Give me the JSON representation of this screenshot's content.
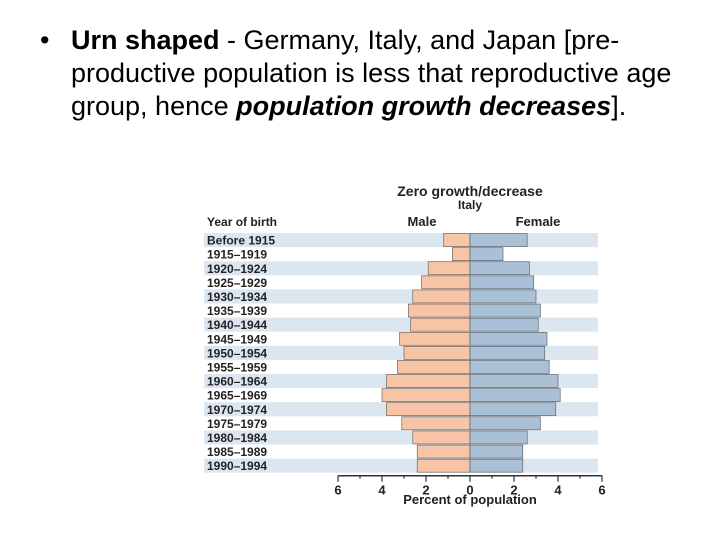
{
  "slide": {
    "bullet": "•",
    "lead_bold": "Urn shaped",
    "text_1": " - Germany, Italy, and Japan [pre-productive population is less that reproductive age group, hence ",
    "text_emph": "population growth decreases",
    "text_2": "]."
  },
  "chart_data": {
    "type": "bar",
    "orientation": "horizontal-pyramid",
    "title": "Zero growth/decrease",
    "subtitle": "Italy",
    "category_header": "Year of birth",
    "xlabel": "Percent of population",
    "xlim": [
      -6,
      6
    ],
    "x_ticks": [
      6,
      4,
      2,
      0,
      2,
      4,
      6
    ],
    "categories": [
      "Before 1915",
      "1915–1919",
      "1920–1924",
      "1925–1929",
      "1930–1934",
      "1935–1939",
      "1940–1944",
      "1945–1949",
      "1950–1954",
      "1955–1959",
      "1960–1964",
      "1965–1969",
      "1970–1974",
      "1975–1979",
      "1980–1984",
      "1985–1989",
      "1990–1994"
    ],
    "series": [
      {
        "name": "Male",
        "color": "#f7c4a6",
        "values": [
          1.2,
          0.8,
          1.9,
          2.2,
          2.6,
          2.8,
          2.7,
          3.2,
          3.0,
          3.3,
          3.8,
          4.0,
          3.8,
          3.1,
          2.6,
          2.4,
          2.4
        ]
      },
      {
        "name": "Female",
        "color": "#a9c0d7",
        "values": [
          2.6,
          1.5,
          2.7,
          2.9,
          3.0,
          3.2,
          3.1,
          3.5,
          3.4,
          3.6,
          4.0,
          4.1,
          3.9,
          3.2,
          2.6,
          2.4,
          2.4
        ]
      }
    ],
    "colors": {
      "row_band": "#dce6f0",
      "axis": "#333333"
    }
  }
}
